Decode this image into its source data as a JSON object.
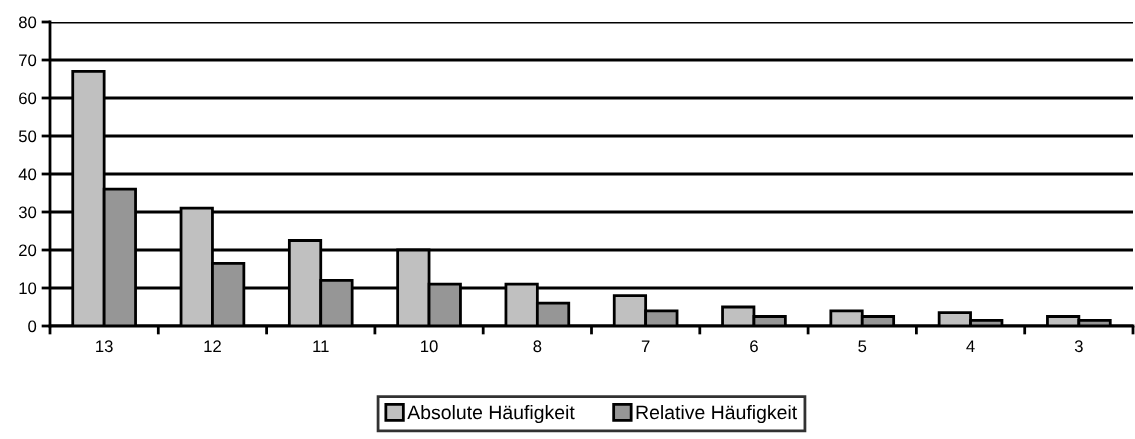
{
  "chart_data": {
    "type": "bar",
    "categories": [
      "13",
      "12",
      "11",
      "10",
      "8",
      "7",
      "6",
      "5",
      "4",
      "3"
    ],
    "series": [
      {
        "name": "Absolute Häufigkeit",
        "color": "#c0c0c0",
        "values": [
          67,
          31,
          22.5,
          20,
          11,
          8,
          5,
          4,
          3.5,
          2.5
        ]
      },
      {
        "name": "Relative Häufigkeit",
        "color": "#969696",
        "values": [
          36,
          16.5,
          12,
          11,
          6,
          4,
          2.5,
          2.5,
          1.5,
          1.5
        ]
      }
    ],
    "ylim": [
      0,
      80
    ],
    "yticks": [
      0,
      10,
      20,
      30,
      40,
      50,
      60,
      70,
      80
    ],
    "grid": "y",
    "legend": "bottom"
  }
}
